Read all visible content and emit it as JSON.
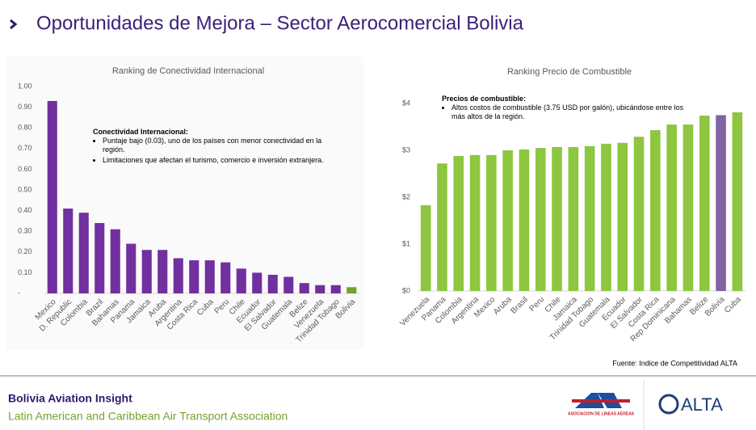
{
  "header": {
    "title": "Oportunidades de Mejora – Sector Aerocomercial Bolivia"
  },
  "chart_data": [
    {
      "type": "bar",
      "title": "Ranking de Conectividad Internacional",
      "categories": [
        "Mexico",
        "D. Republic",
        "Colombia",
        "Brazil",
        "Bahamas",
        "Panama",
        "Jamaica",
        "Aruba",
        "Argentina",
        "Costa Rica",
        "Cuba",
        "Peru",
        "Chile",
        "Ecuador",
        "El Salvador",
        "Guatemala",
        "Belize",
        "Venezuela",
        "Trinidad Tobago",
        "Bolivia"
      ],
      "values": [
        0.93,
        0.41,
        0.39,
        0.34,
        0.31,
        0.24,
        0.21,
        0.21,
        0.17,
        0.16,
        0.16,
        0.15,
        0.12,
        0.1,
        0.09,
        0.08,
        0.05,
        0.04,
        0.04,
        0.03
      ],
      "colors": [
        "#7030a0",
        "#7030a0",
        "#7030a0",
        "#7030a0",
        "#7030a0",
        "#7030a0",
        "#7030a0",
        "#7030a0",
        "#7030a0",
        "#7030a0",
        "#7030a0",
        "#7030a0",
        "#7030a0",
        "#7030a0",
        "#7030a0",
        "#7030a0",
        "#7030a0",
        "#7030a0",
        "#7030a0",
        "#77a12a"
      ],
      "ylim": [
        0,
        1
      ],
      "yticks": [
        {
          "value": 0,
          "label": "-"
        },
        {
          "value": 0.1,
          "label": "0.10"
        },
        {
          "value": 0.2,
          "label": "0.20"
        },
        {
          "value": 0.3,
          "label": "0.30"
        },
        {
          "value": 0.4,
          "label": "0.40"
        },
        {
          "value": 0.5,
          "label": "0.50"
        },
        {
          "value": 0.6,
          "label": "0.60"
        },
        {
          "value": 0.7,
          "label": "0.70"
        },
        {
          "value": 0.8,
          "label": "0.80"
        },
        {
          "value": 0.9,
          "label": "0.90"
        },
        {
          "value": 1,
          "label": "1.00"
        }
      ],
      "grid": false,
      "annotation": {
        "title": "Conectividad Internacional:",
        "bullets": [
          "Puntaje bajo (0.03), uno de los países con menor conectividad en la región.",
          "Limitaciones que afectan el turismo, comercio e inversión extranjera."
        ]
      }
    },
    {
      "type": "bar",
      "title": "Ranking Precio de Combustible",
      "categories": [
        "Venezuela",
        "Panama",
        "Colombia",
        "Argentina",
        "Mexico",
        "Aruba",
        "Brasil",
        "Peru",
        "Chile",
        "Jamaica",
        "Trinidad Tobago",
        "Guatemala",
        "Ecuador",
        "El Salvador",
        "Costa Rica",
        "Rep Dominicana",
        "Bahamas",
        "Belize",
        "Bolivia",
        "Cuba"
      ],
      "values": [
        1.83,
        2.72,
        2.88,
        2.9,
        2.9,
        3.0,
        3.02,
        3.05,
        3.07,
        3.07,
        3.09,
        3.14,
        3.16,
        3.29,
        3.43,
        3.55,
        3.55,
        3.74,
        3.75,
        3.81
      ],
      "colors": [
        "#8dc63f",
        "#8dc63f",
        "#8dc63f",
        "#8dc63f",
        "#8dc63f",
        "#8dc63f",
        "#8dc63f",
        "#8dc63f",
        "#8dc63f",
        "#8dc63f",
        "#8dc63f",
        "#8dc63f",
        "#8dc63f",
        "#8dc63f",
        "#8dc63f",
        "#8dc63f",
        "#8dc63f",
        "#8dc63f",
        "#8064a2",
        "#8dc63f"
      ],
      "ylim": [
        0,
        4
      ],
      "yticks": [
        {
          "value": 0,
          "label": "$0"
        },
        {
          "value": 1,
          "label": "$1"
        },
        {
          "value": 2,
          "label": "$2"
        },
        {
          "value": 3,
          "label": "$3"
        },
        {
          "value": 4,
          "label": "$4"
        }
      ],
      "grid": false,
      "annotation": {
        "title": "Precios de combustible:",
        "bullets": [
          "Altos costos de combustible (3.75 USD por galón), ubicándose entre los más altos de la región."
        ]
      }
    }
  ],
  "source": "Fuente: Indice de Competitividad ALTA",
  "footer": {
    "title": "Bolivia Aviation Insight",
    "subtitle": "Latin American and Caribbean Air Transport Association"
  },
  "logos": {
    "ala": "ASOCIACION DE LINEAS AEREAS",
    "alta": "ALTA"
  }
}
